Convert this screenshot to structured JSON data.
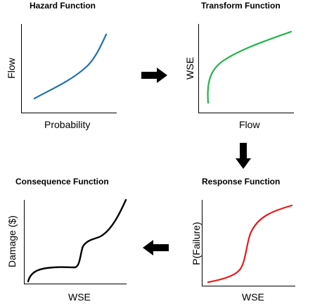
{
  "panels": {
    "hazard": {
      "title": "Hazard Function",
      "xlabel": "Probability",
      "ylabel": "Flow",
      "curve_color": "#1f6fb5"
    },
    "transform": {
      "title": "Transform Function",
      "xlabel": "Flow",
      "ylabel": "WSE",
      "curve_color": "#22b24c"
    },
    "response": {
      "title": "Response Function",
      "xlabel": "WSE",
      "ylabel": "P(Failure)",
      "curve_color": "#e8191a"
    },
    "consequence": {
      "title": "Consequence Function",
      "xlabel": "WSE",
      "ylabel": "Damage ($)",
      "curve_color": "#000000"
    }
  },
  "arrows": {
    "color": "#000000",
    "hazard_to_transform": "right-arrow-icon",
    "transform_to_response": "down-arrow-icon",
    "response_to_consequence": "left-arrow-icon"
  }
}
